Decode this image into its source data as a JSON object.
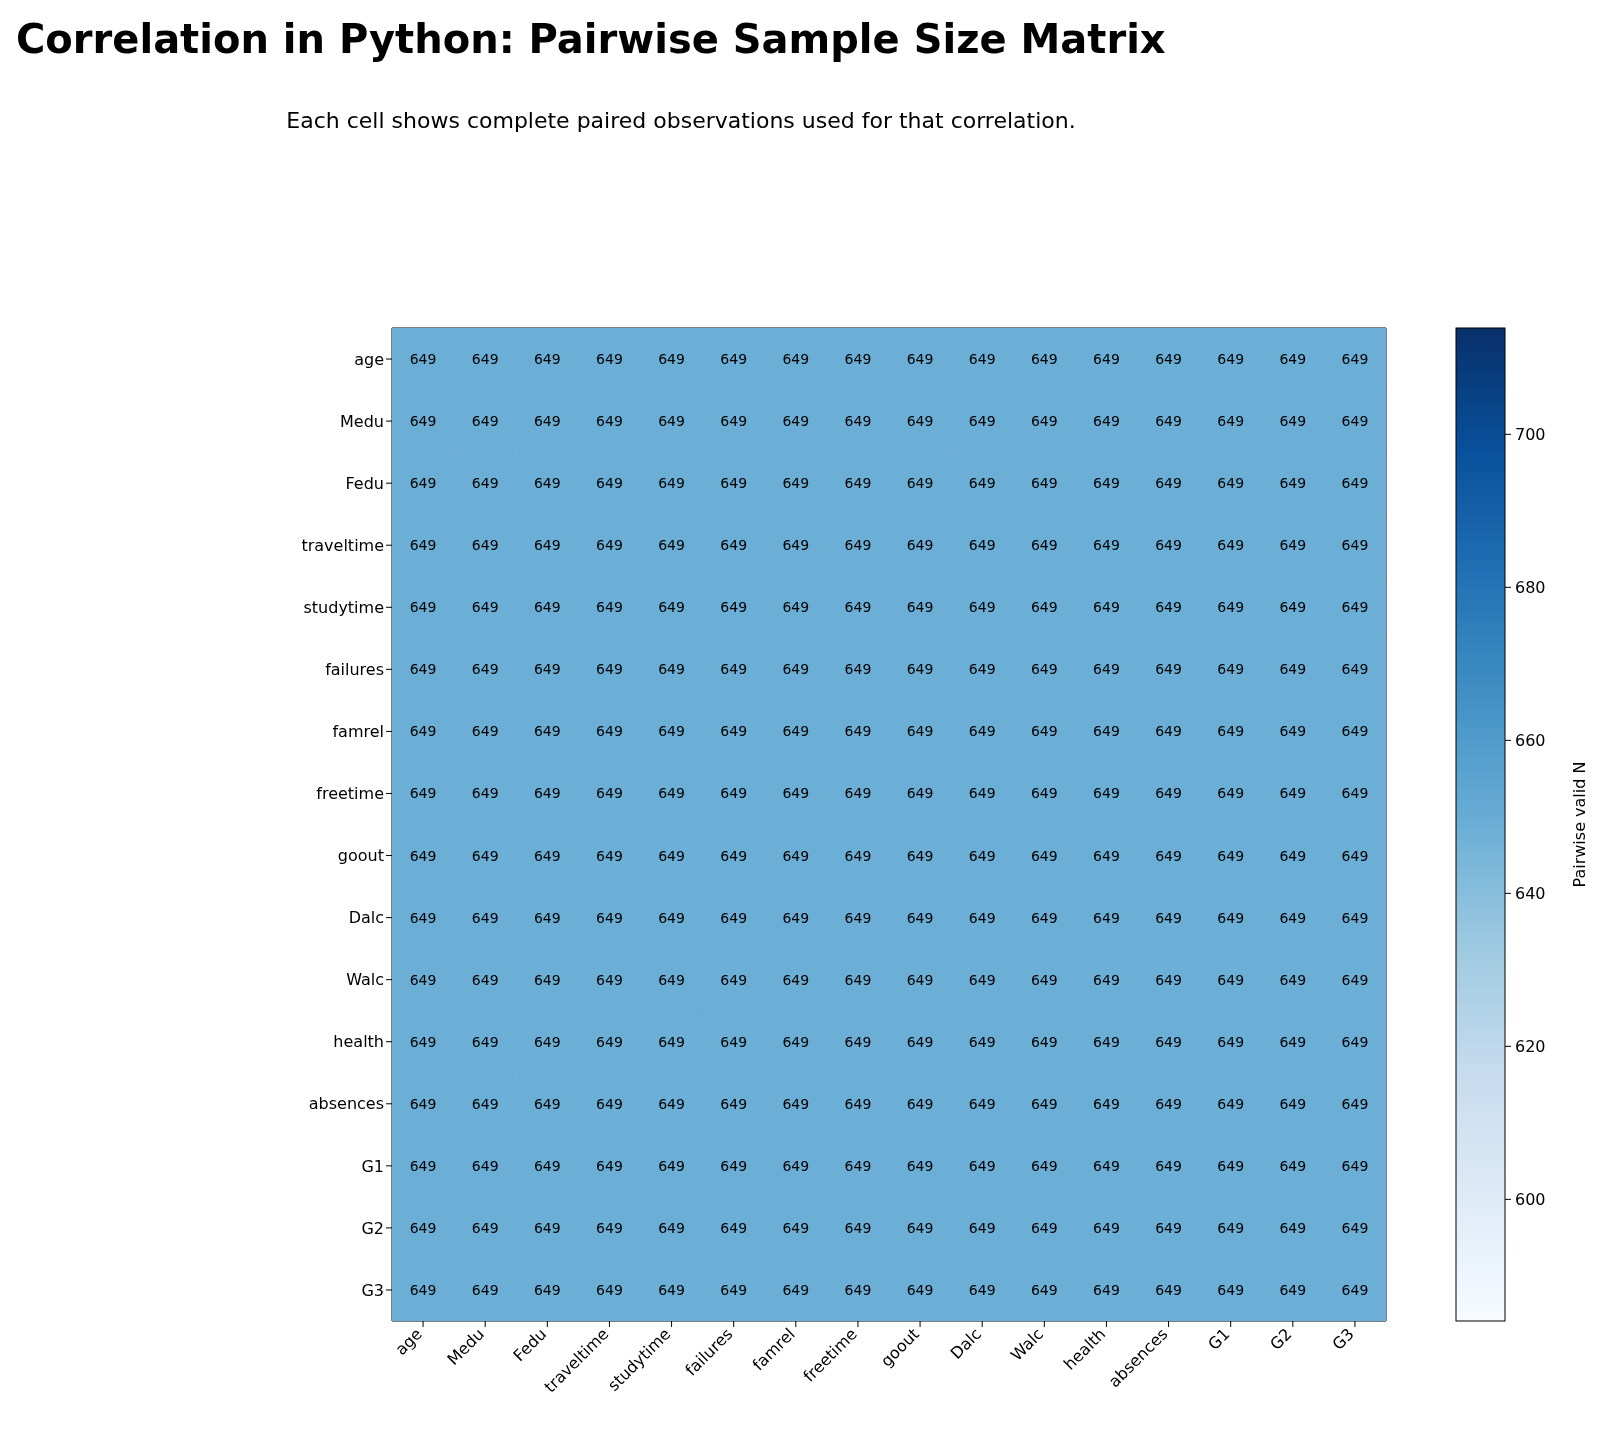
{
  "chart_data": {
    "type": "heatmap",
    "title": "Correlation in Python: Pairwise Sample Size Matrix",
    "subtitle": "Each cell shows complete paired observations used for that correlation.",
    "categories": [
      "age",
      "Medu",
      "Fedu",
      "traveltime",
      "studytime",
      "failures",
      "famrel",
      "freetime",
      "goout",
      "Dalc",
      "Walc",
      "health",
      "absences",
      "G1",
      "G2",
      "G3"
    ],
    "y_categories": [
      "age",
      "Medu",
      "Fedu",
      "traveltime",
      "studytime",
      "failures",
      "famrel",
      "freetime",
      "goout",
      "Dalc",
      "Walc",
      "health",
      "absences",
      "G1",
      "G2",
      "G3"
    ],
    "cells": [
      [
        649,
        649,
        649,
        649,
        649,
        649,
        649,
        649,
        649,
        649,
        649,
        649,
        649,
        649,
        649,
        649
      ],
      [
        649,
        649,
        649,
        649,
        649,
        649,
        649,
        649,
        649,
        649,
        649,
        649,
        649,
        649,
        649,
        649
      ],
      [
        649,
        649,
        649,
        649,
        649,
        649,
        649,
        649,
        649,
        649,
        649,
        649,
        649,
        649,
        649,
        649
      ],
      [
        649,
        649,
        649,
        649,
        649,
        649,
        649,
        649,
        649,
        649,
        649,
        649,
        649,
        649,
        649,
        649
      ],
      [
        649,
        649,
        649,
        649,
        649,
        649,
        649,
        649,
        649,
        649,
        649,
        649,
        649,
        649,
        649,
        649
      ],
      [
        649,
        649,
        649,
        649,
        649,
        649,
        649,
        649,
        649,
        649,
        649,
        649,
        649,
        649,
        649,
        649
      ],
      [
        649,
        649,
        649,
        649,
        649,
        649,
        649,
        649,
        649,
        649,
        649,
        649,
        649,
        649,
        649,
        649
      ],
      [
        649,
        649,
        649,
        649,
        649,
        649,
        649,
        649,
        649,
        649,
        649,
        649,
        649,
        649,
        649,
        649
      ],
      [
        649,
        649,
        649,
        649,
        649,
        649,
        649,
        649,
        649,
        649,
        649,
        649,
        649,
        649,
        649,
        649
      ],
      [
        649,
        649,
        649,
        649,
        649,
        649,
        649,
        649,
        649,
        649,
        649,
        649,
        649,
        649,
        649,
        649
      ],
      [
        649,
        649,
        649,
        649,
        649,
        649,
        649,
        649,
        649,
        649,
        649,
        649,
        649,
        649,
        649,
        649
      ],
      [
        649,
        649,
        649,
        649,
        649,
        649,
        649,
        649,
        649,
        649,
        649,
        649,
        649,
        649,
        649,
        649
      ],
      [
        649,
        649,
        649,
        649,
        649,
        649,
        649,
        649,
        649,
        649,
        649,
        649,
        649,
        649,
        649,
        649
      ],
      [
        649,
        649,
        649,
        649,
        649,
        649,
        649,
        649,
        649,
        649,
        649,
        649,
        649,
        649,
        649,
        649
      ],
      [
        649,
        649,
        649,
        649,
        649,
        649,
        649,
        649,
        649,
        649,
        649,
        649,
        649,
        649,
        649,
        649
      ],
      [
        649,
        649,
        649,
        649,
        649,
        649,
        649,
        649,
        649,
        649,
        649,
        649,
        649,
        649,
        649,
        649
      ]
    ],
    "data_labels": true,
    "clabel": "Pairwise valid N",
    "clim": [
      584.1,
      713.9
    ],
    "cticks": [
      600,
      620,
      640,
      660,
      680,
      700
    ]
  }
}
